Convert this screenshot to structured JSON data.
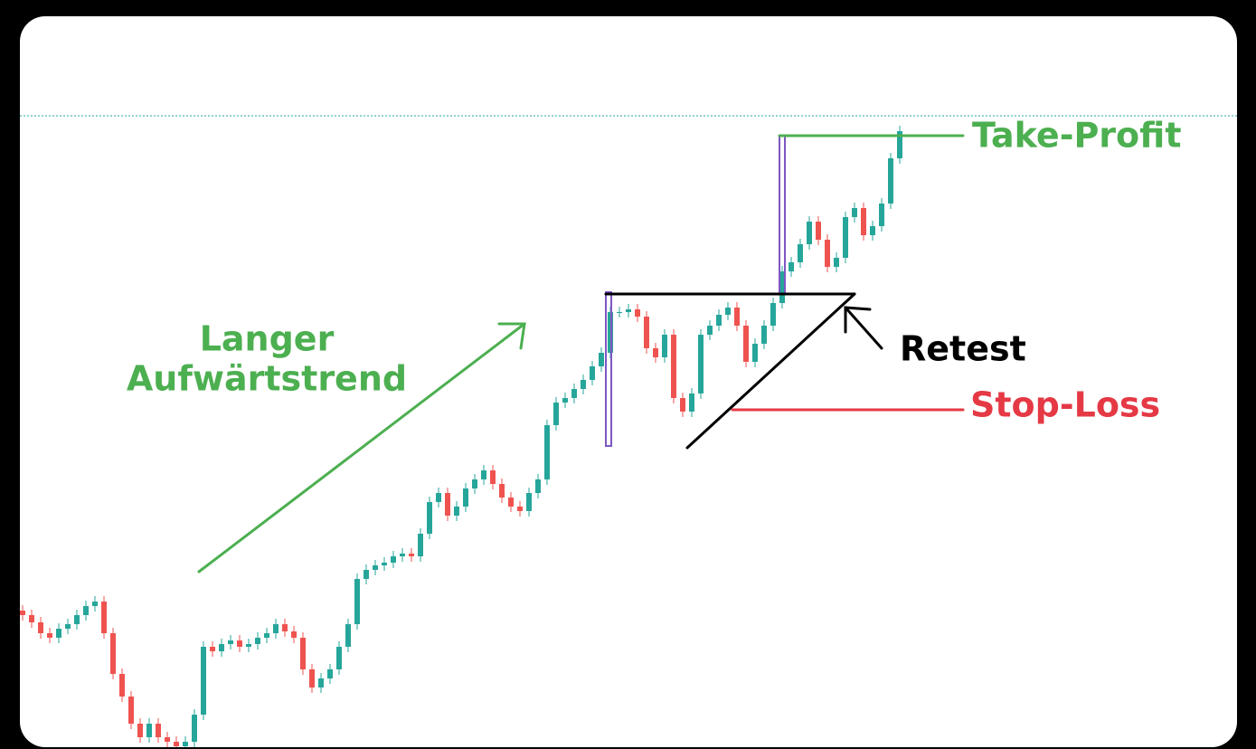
{
  "chart_data": {
    "type": "candlestick",
    "open": [
      153,
      148,
      140,
      128,
      123,
      133,
      138,
      148,
      158,
      163,
      128,
      83,
      58,
      28,
      13,
      28,
      13,
      8,
      3,
      8,
      38,
      113,
      108,
      116,
      120,
      113,
      116,
      123,
      128,
      138,
      130,
      123,
      88,
      68,
      78,
      88,
      113,
      138,
      188,
      198,
      203,
      206,
      213,
      216,
      213,
      238,
      273,
      283,
      258,
      268,
      288,
      298,
      308,
      293,
      278,
      268,
      263,
      283,
      298,
      358,
      383,
      388,
      398,
      408,
      423,
      438,
      483,
      483,
      486,
      478,
      443,
      433,
      458,
      388,
      373,
      393,
      458,
      468,
      480,
      488,
      468,
      428,
      448,
      468,
      493,
      528,
      538,
      558,
      583,
      563,
      533,
      543,
      588,
      598,
      568,
      578,
      603,
      653
    ],
    "high": [
      159,
      154,
      146,
      134,
      139,
      144,
      154,
      164,
      169,
      169,
      134,
      89,
      64,
      34,
      34,
      34,
      19,
      14,
      14,
      44,
      119,
      119,
      122,
      126,
      126,
      122,
      129,
      134,
      144,
      144,
      136,
      129,
      94,
      84,
      94,
      119,
      144,
      194,
      204,
      209,
      212,
      219,
      222,
      222,
      244,
      279,
      289,
      289,
      274,
      294,
      304,
      314,
      314,
      299,
      284,
      274,
      289,
      304,
      364,
      389,
      394,
      404,
      414,
      429,
      444,
      489,
      489,
      492,
      492,
      484,
      449,
      464,
      464,
      394,
      399,
      464,
      474,
      486,
      494,
      494,
      474,
      454,
      474,
      499,
      534,
      544,
      564,
      589,
      589,
      569,
      549,
      594,
      604,
      604,
      584,
      609,
      659,
      689
    ],
    "low": [
      142,
      134,
      122,
      117,
      117,
      127,
      132,
      142,
      152,
      122,
      77,
      52,
      22,
      7,
      7,
      7,
      2,
      -3,
      -3,
      2,
      32,
      102,
      102,
      110,
      107,
      107,
      110,
      117,
      122,
      124,
      117,
      82,
      62,
      62,
      72,
      82,
      107,
      132,
      182,
      192,
      197,
      200,
      207,
      207,
      207,
      232,
      267,
      252,
      252,
      262,
      282,
      292,
      287,
      272,
      262,
      257,
      257,
      277,
      292,
      352,
      377,
      382,
      392,
      402,
      417,
      432,
      477,
      477,
      472,
      437,
      427,
      427,
      382,
      367,
      367,
      387,
      452,
      462,
      474,
      462,
      422,
      422,
      442,
      462,
      487,
      522,
      532,
      552,
      557,
      527,
      527,
      537,
      582,
      562,
      562,
      572,
      597,
      647
    ],
    "close": [
      148,
      140,
      128,
      123,
      133,
      138,
      148,
      158,
      163,
      128,
      83,
      58,
      28,
      13,
      28,
      13,
      8,
      3,
      8,
      38,
      113,
      108,
      116,
      120,
      113,
      116,
      123,
      128,
      138,
      130,
      123,
      88,
      68,
      78,
      88,
      113,
      138,
      188,
      198,
      203,
      206,
      213,
      216,
      213,
      238,
      273,
      283,
      258,
      268,
      288,
      298,
      308,
      293,
      278,
      268,
      263,
      283,
      298,
      358,
      383,
      388,
      398,
      408,
      423,
      438,
      483,
      483,
      486,
      478,
      443,
      433,
      458,
      388,
      373,
      393,
      458,
      468,
      480,
      488,
      468,
      428,
      448,
      468,
      493,
      528,
      538,
      558,
      583,
      563,
      533,
      543,
      588,
      598,
      568,
      578,
      603,
      653,
      683
    ],
    "up_color": "#26a69a",
    "down_color": "#ef5350"
  },
  "annotations": {
    "trend": [
      "Langer",
      "Aufwärtstrend"
    ],
    "take_profit": "Take-Profit",
    "retest": "Retest",
    "stop_loss": "Stop-Loss"
  }
}
